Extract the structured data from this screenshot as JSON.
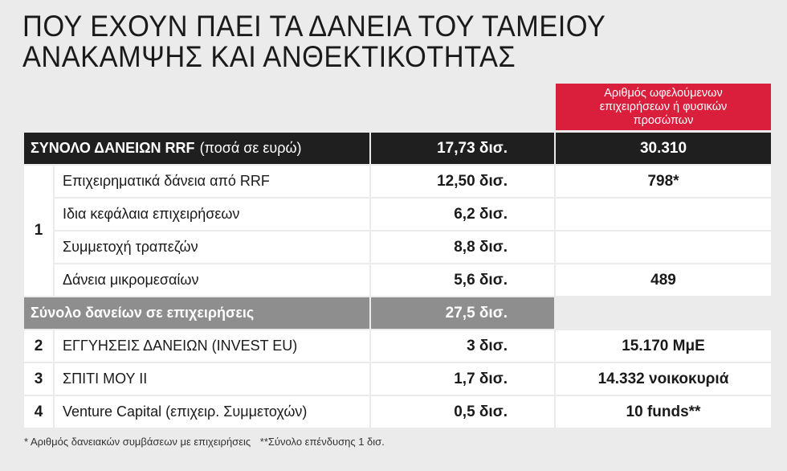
{
  "title": {
    "line1": "ΠΟΥ ΕΧΟΥΝ ΠΑΕΙ ΤΑ ΔΑΝΕΙΑ ΤΟΥ ΤΑΜΕΙΟΥ",
    "line2": "ΑΝΑΚΑΜΨΗΣ ΚΑΙ ΑΝΘΕΚΤΙΚΟΤΗΤΑΣ"
  },
  "column_header": "Αριθμός ωφελούμενων επιχειρήσεων ή φυσικών προσώπων",
  "total_row": {
    "label_bold": "ΣΥΝΟΛΟ ΔΑΝΕΙΩΝ RRF",
    "label_note": "(ποσά σε ευρώ)",
    "amount": "17,73 δισ.",
    "beneficiaries": "30.310"
  },
  "group1": {
    "number": "1",
    "rows": [
      {
        "label": "Επιχειρηματικά δάνεια από RRF",
        "amount": "12,50 δισ.",
        "beneficiaries": "798*"
      },
      {
        "label": "Ιδια κεφάλαια επιχειρήσεων",
        "amount": "6,2 δισ.",
        "beneficiaries": ""
      },
      {
        "label": "Συμμετοχή τραπεζών",
        "amount": "8,8 δισ.",
        "beneficiaries": ""
      },
      {
        "label": "Δάνεια μικρομεσαίων",
        "amount": "5,6 δισ.",
        "beneficiaries": "489"
      }
    ]
  },
  "subtotal_row": {
    "label": "Σύνολο δανείων σε επιχειρήσεις",
    "amount": "27,5 δισ.",
    "beneficiaries": ""
  },
  "other_rows": [
    {
      "number": "2",
      "label": "ΕΓΓΥΗΣΕΙΣ ΔΑΝΕΙΩΝ (INVEST EU)",
      "amount": "3 δισ.",
      "beneficiaries": "15.170 ΜμΕ"
    },
    {
      "number": "3",
      "label": "ΣΠΙΤΙ ΜΟΥ ΙΙ",
      "amount": "1,7 δισ.",
      "beneficiaries": "14.332 νοικοκυριά"
    },
    {
      "number": "4",
      "label": "Venture Capital (επιχειρ. Συμμετοχών)",
      "amount": "0,5 δισ.",
      "beneficiaries": "10 funds**"
    }
  ],
  "footnotes": {
    "note1": "* Αριθμός δανειακών συμβάσεων με επιχειρήσεις",
    "note2": "**Σύνολο επένδυσης 1 δισ."
  },
  "colors": {
    "accent_red": "#da1f3d",
    "dark_row": "#1f1f1f",
    "grey_row": "#8e8e8e",
    "background": "#ebebeb"
  }
}
